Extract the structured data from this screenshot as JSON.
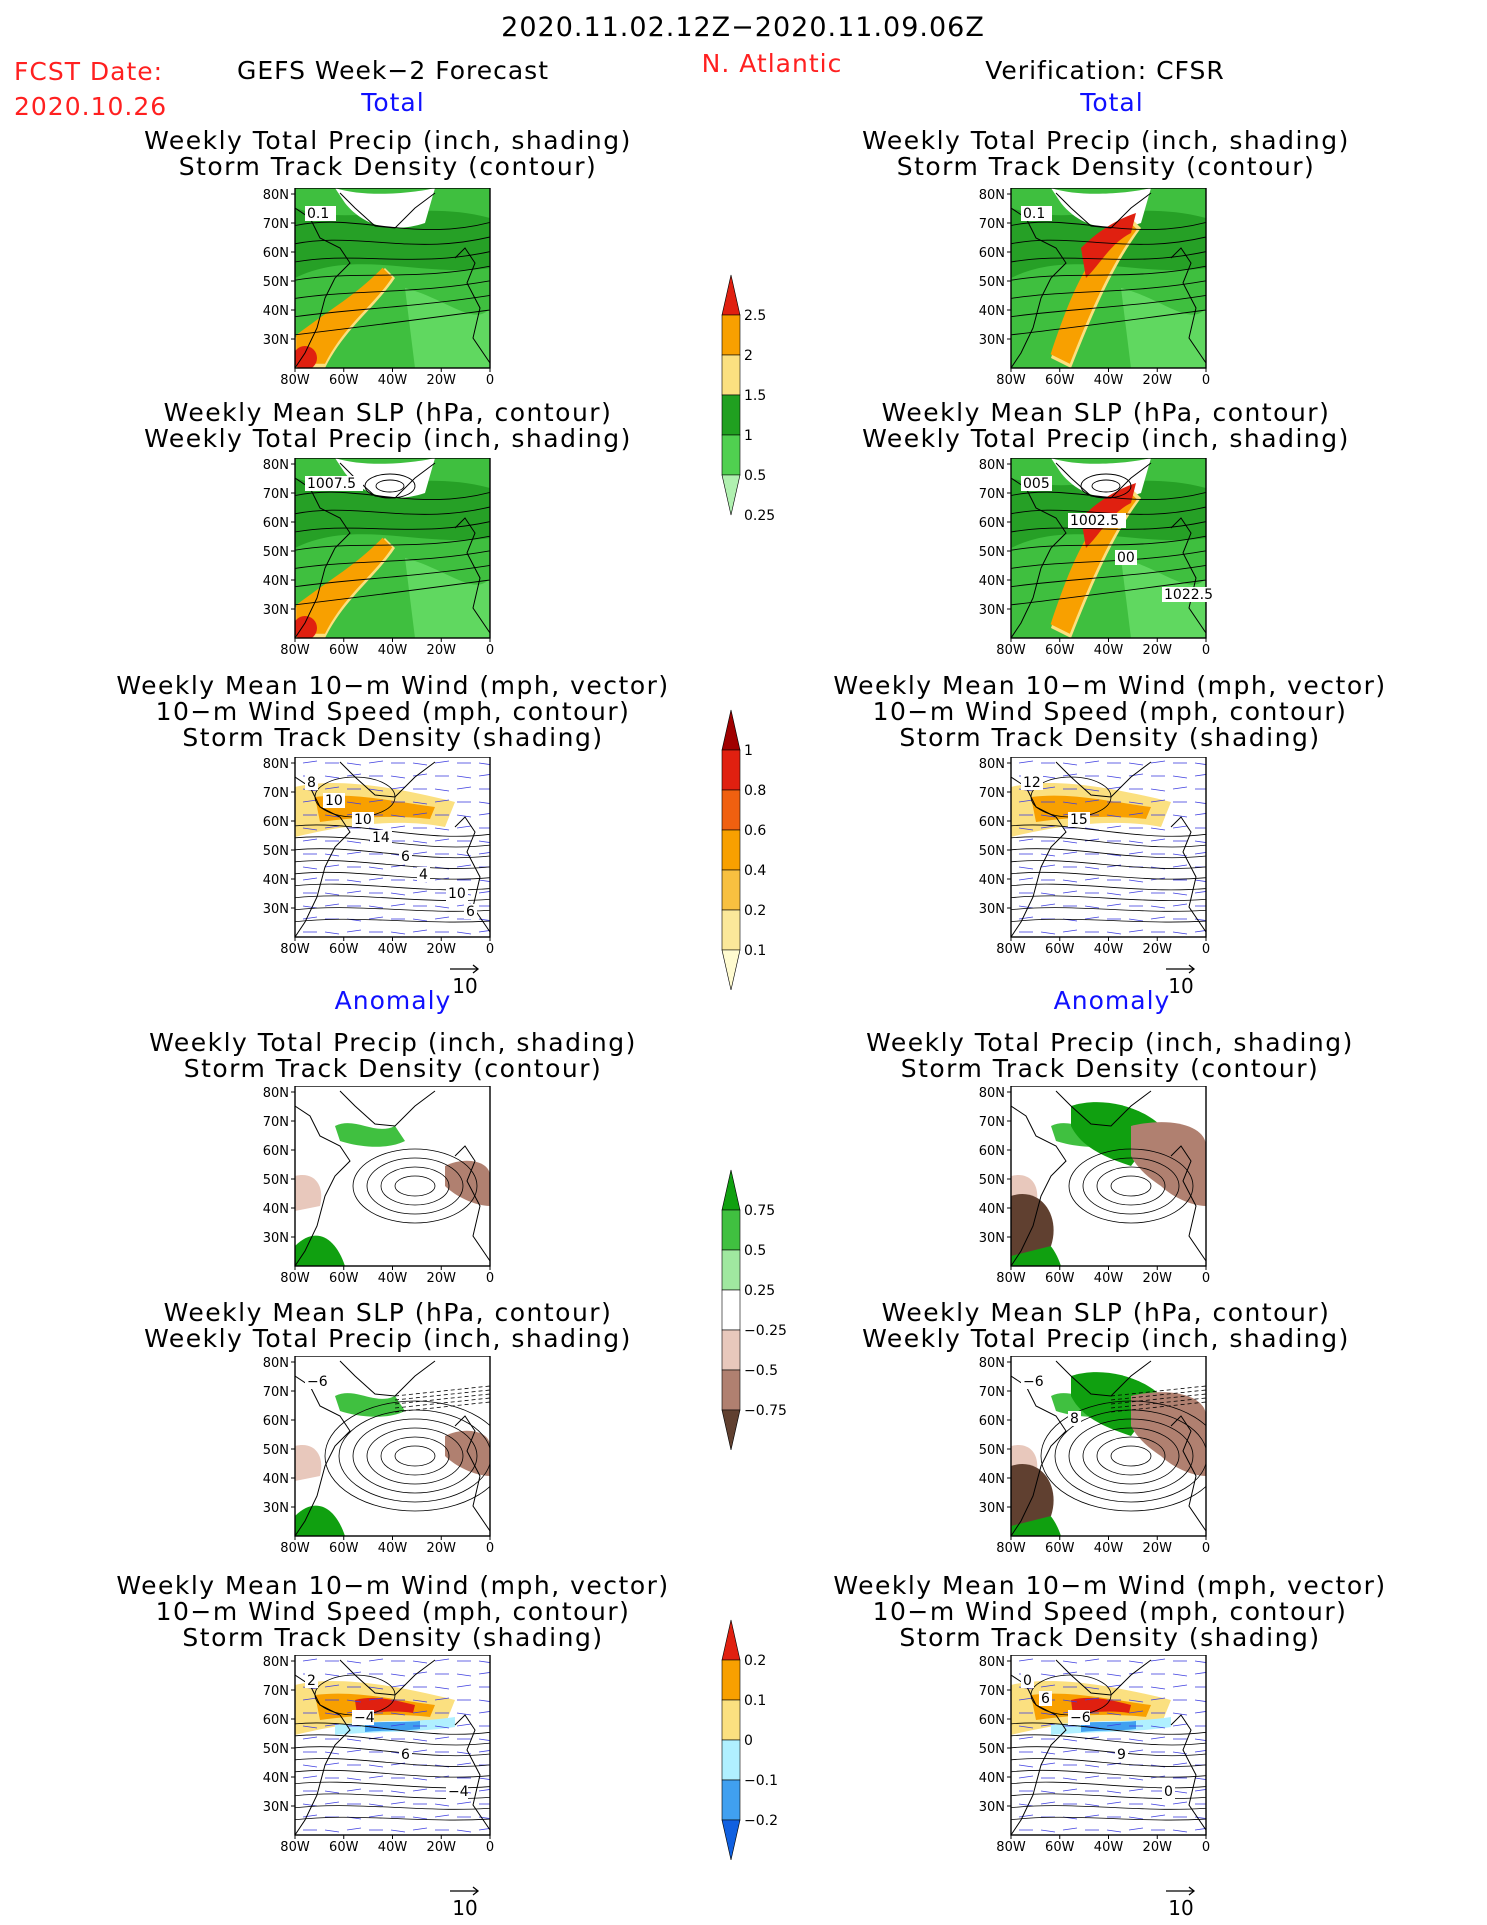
{
  "header": {
    "period": "2020.11.02.12Z−2020.11.09.06Z",
    "fcst_label": "FCST Date:",
    "fcst_date": "2020.10.26",
    "left_title": "GEFS Week−2 Forecast",
    "region": "N. Atlantic",
    "right_title": "Verification: CFSR",
    "total_left": "Total",
    "total_right": "Total",
    "anomaly_left": "Anomaly",
    "anomaly_right": "Anomaly"
  },
  "axes": {
    "lat_labels": [
      "80N",
      "70N",
      "60N",
      "50N",
      "40N",
      "30N"
    ],
    "lon_labels": [
      "80W",
      "60W",
      "40W",
      "20W",
      "0"
    ]
  },
  "vector_ref": "10",
  "panels": [
    {
      "id": "p1",
      "line1": "Weekly Total Precip (inch, shading)",
      "line2": "Storm Track Density (contour)",
      "line3": "",
      "kind": "precip",
      "labels": [
        "0.1"
      ]
    },
    {
      "id": "p2",
      "line1": "Weekly Total Precip (inch, shading)",
      "line2": "Storm Track Density (contour)",
      "line3": "",
      "kind": "precip",
      "labels": [
        "0.1"
      ]
    },
    {
      "id": "p3",
      "line1": "Weekly Mean SLP (hPa, contour)",
      "line2": "Weekly Total Precip (inch, shading)",
      "line3": "",
      "kind": "slp",
      "labels": [
        "1007.5"
      ]
    },
    {
      "id": "p4",
      "line1": "Weekly Mean SLP (hPa, contour)",
      "line2": "Weekly Total Precip (inch, shading)",
      "line3": "",
      "kind": "slp",
      "labels": [
        "005",
        "1002.5",
        "00",
        "1022.5"
      ]
    },
    {
      "id": "p5",
      "line1": "Weekly Mean 10−m Wind (mph, vector)",
      "line2": "10−m Wind Speed (mph, contour)",
      "line3": "Storm Track Density (shading)",
      "kind": "wind",
      "labels": [
        "8",
        "10",
        "6",
        "10",
        "10",
        "14",
        "4",
        "6"
      ]
    },
    {
      "id": "p6",
      "line1": "Weekly Mean 10−m Wind (mph, vector)",
      "line2": "10−m Wind Speed (mph, contour)",
      "line3": "Storm Track Density (shading)",
      "kind": "wind",
      "labels": [
        "12",
        "15"
      ]
    },
    {
      "id": "p7",
      "line1": "Weekly Total Precip (inch, shading)",
      "line2": "Storm Track Density (contour)",
      "line3": "",
      "kind": "aprecip",
      "labels": []
    },
    {
      "id": "p8",
      "line1": "Weekly Total Precip (inch, shading)",
      "line2": "Storm Track Density (contour)",
      "line3": "",
      "kind": "aprecip",
      "labels": []
    },
    {
      "id": "p9",
      "line1": "Weekly Mean SLP (hPa, contour)",
      "line2": "Weekly Total Precip (inch, shading)",
      "line3": "",
      "kind": "aslp",
      "labels": [
        "−6"
      ]
    },
    {
      "id": "p10",
      "line1": "Weekly Mean SLP (hPa, contour)",
      "line2": "Weekly Total Precip (inch, shading)",
      "line3": "",
      "kind": "aslp",
      "labels": [
        "−6",
        "8"
      ]
    },
    {
      "id": "p11",
      "line1": "Weekly Mean 10−m Wind (mph, vector)",
      "line2": "10−m Wind Speed (mph, contour)",
      "line3": "Storm Track Density (shading)",
      "kind": "awind",
      "labels": [
        "2",
        "−4",
        "6",
        "−4"
      ]
    },
    {
      "id": "p12",
      "line1": "Weekly Mean 10−m Wind (mph, vector)",
      "line2": "10−m Wind Speed (mph, contour)",
      "line3": "Storm Track Density (shading)",
      "kind": "awind",
      "labels": [
        "0",
        "−6",
        "9",
        "0",
        "6"
      ]
    }
  ],
  "colorbars": [
    {
      "id": "cb1",
      "labels": [
        "2.5",
        "2",
        "1.5",
        "1",
        "0.5",
        "0.25"
      ],
      "colors": [
        "#e02010",
        "#f8a000",
        "#fbe080",
        "#20a020",
        "#50d050",
        "#b0f0b0"
      ]
    },
    {
      "id": "cb2",
      "labels": [
        "1",
        "0.8",
        "0.6",
        "0.4",
        "0.2",
        "0.1"
      ],
      "colors": [
        "#a00000",
        "#e02010",
        "#f06010",
        "#f8a000",
        "#f8c040",
        "#fbe89a",
        "#fffbd0"
      ]
    },
    {
      "id": "cb3",
      "labels": [
        "0.75",
        "0.5",
        "0.25",
        "−0.25",
        "−0.5",
        "−0.75"
      ],
      "colors": [
        "#10a010",
        "#40c040",
        "#a0e8a0",
        "#ffffff",
        "#e8c8bc",
        "#b08070",
        "#604030"
      ]
    },
    {
      "id": "cb4",
      "labels": [
        "0.2",
        "0.1",
        "0",
        "−0.1",
        "−0.2"
      ],
      "colors": [
        "#e02010",
        "#f8a000",
        "#fbe080",
        "#b0f0ff",
        "#40a0f0",
        "#1060e0"
      ]
    }
  ]
}
